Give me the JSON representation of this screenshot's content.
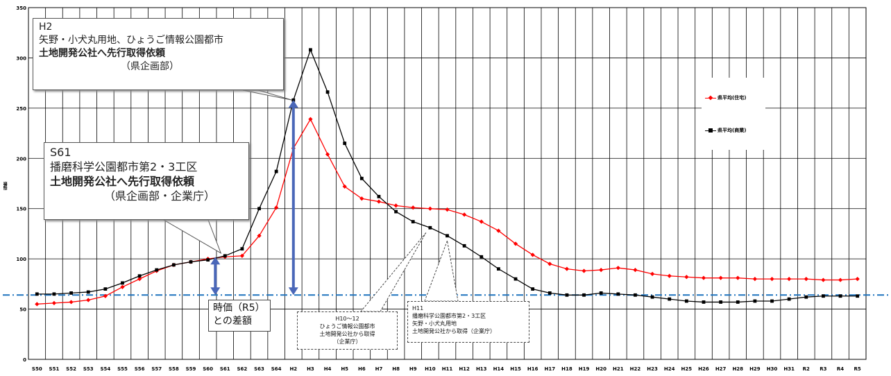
{
  "chart_data": {
    "type": "line",
    "ylabel": "指数",
    "ylim": [
      0,
      350
    ],
    "yticks": [
      0,
      50,
      100,
      150,
      200,
      250,
      300,
      350
    ],
    "categories": [
      "S50",
      "S51",
      "S52",
      "S53",
      "S54",
      "S55",
      "S56",
      "S57",
      "S58",
      "S59",
      "S60",
      "S61",
      "S62",
      "S63",
      "S64",
      "H2",
      "H3",
      "H4",
      "H5",
      "H6",
      "H7",
      "H8",
      "H9",
      "H10",
      "H11",
      "H12",
      "H13",
      "H14",
      "H15",
      "H16",
      "H17",
      "H18",
      "H19",
      "H20",
      "H21",
      "H22",
      "H23",
      "H24",
      "H25",
      "H26",
      "H27",
      "H28",
      "H29",
      "H30",
      "H31",
      "R2",
      "R3",
      "R4",
      "R5"
    ],
    "series": [
      {
        "name": "県平均(住宅)",
        "color": "#ff0000",
        "values": [
          55,
          56,
          57,
          59,
          63,
          72,
          80,
          88,
          94,
          97,
          100,
          102,
          103,
          123,
          151,
          210,
          239,
          204,
          172,
          160,
          157,
          153,
          151,
          150,
          149,
          144,
          137,
          128,
          115,
          104,
          95,
          90,
          88,
          89,
          91,
          89,
          85,
          83,
          82,
          81,
          81,
          81,
          80,
          80,
          80,
          80,
          79,
          79,
          80
        ]
      },
      {
        "name": "県平均(商業)",
        "color": "#000000",
        "values": [
          65,
          65,
          66,
          67,
          70,
          76,
          83,
          89,
          94,
          97,
          99,
          103,
          110,
          150,
          187,
          258,
          308,
          266,
          215,
          180,
          162,
          147,
          137,
          131,
          123,
          113,
          102,
          90,
          80,
          70,
          66,
          64,
          64,
          66,
          65,
          64,
          62,
          60,
          58,
          57,
          57,
          57,
          58,
          58,
          60,
          62,
          63,
          63,
          63
        ]
      }
    ],
    "reference_line": {
      "value": 64,
      "color": "#1e73be"
    },
    "diff_arrows": [
      {
        "category": "S61",
        "from": 64,
        "to": 102
      },
      {
        "category": "H2",
        "from": 64,
        "to": 258
      }
    ]
  },
  "callouts": {
    "h2": {
      "line1": "H2",
      "line2": "矢野・小犬丸用地、ひょうご情報公園都市",
      "line3": "土地開発公社へ先行取得依頼",
      "line4": "（県企画部）"
    },
    "s61": {
      "line1": "S61",
      "line2": "播磨科学公園都市第2・3工区",
      "line3": "土地開発公社へ先行取得依頼",
      "line4": "（県企画部・企業庁）"
    }
  },
  "diff_box": {
    "line1": "時価（R5）",
    "line2": "との差額"
  },
  "notes": {
    "h10": {
      "line1": "H10～12",
      "line2": "ひょうご情報公園都市",
      "line3": "土地開発公社から取得",
      "line4": "（企業庁）"
    },
    "h11": {
      "line1": "H11",
      "line2": "播磨科学公園都市第2・3工区",
      "line3": "矢野・小犬丸用地",
      "line4": "土地開発公社から取得（企業庁）"
    }
  },
  "legend": {
    "red_label": "県平均(住宅)",
    "black_label": "県平均(商業)",
    "red_color": "#ff0000",
    "black_color": "#000000"
  }
}
